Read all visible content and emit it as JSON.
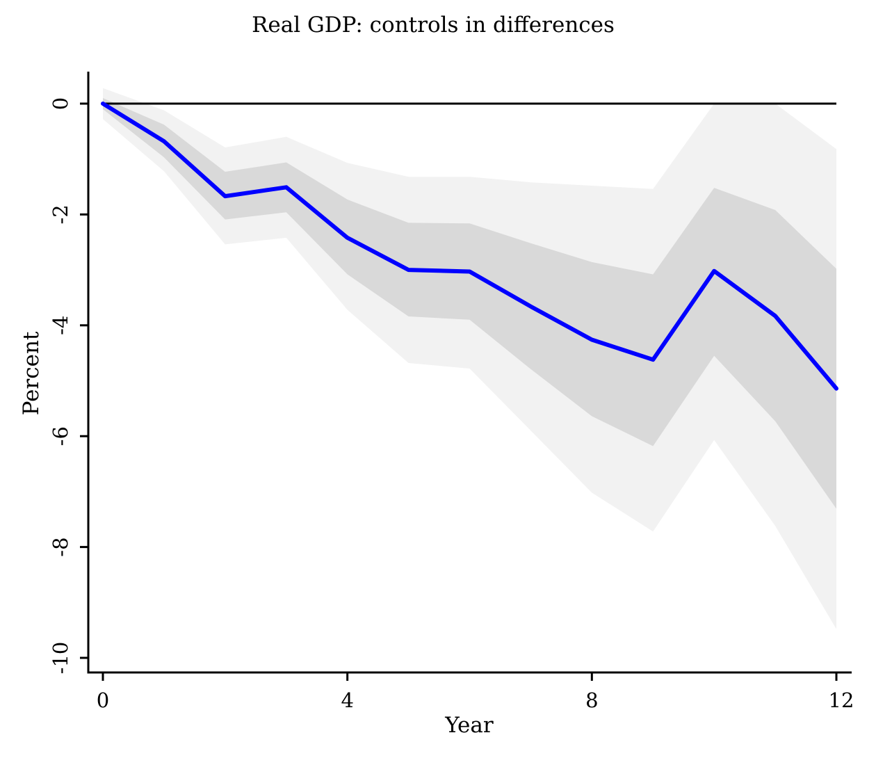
{
  "chart_data": {
    "type": "line",
    "title": "Real GDP: controls in differences",
    "xlabel": "Year",
    "ylabel": "Percent",
    "xlim": [
      0,
      12
    ],
    "ylim": [
      -10,
      0
    ],
    "x_ticks": [
      0,
      4,
      8,
      12
    ],
    "y_ticks": [
      0,
      -2,
      -4,
      -6,
      -8,
      -10
    ],
    "x": [
      0,
      1,
      2,
      3,
      4,
      5,
      6,
      7,
      8,
      9,
      10,
      11,
      12
    ],
    "series": [
      {
        "values": [
          0,
          -0.68,
          -1.67,
          -1.51,
          -2.42,
          -3.0,
          -3.03,
          -3.66,
          -4.26,
          -4.62,
          -3.02,
          -3.83,
          -5.14
        ]
      }
    ],
    "bands": [
      {
        "level": "outer",
        "upper": [
          0.28,
          -0.12,
          -0.79,
          -0.6,
          -1.07,
          -1.32,
          -1.32,
          -1.42,
          -1.48,
          -1.54,
          0.0,
          0.0,
          -0.82
        ],
        "lower": [
          -0.28,
          -1.22,
          -2.54,
          -2.42,
          -3.72,
          -4.68,
          -4.78,
          -5.9,
          -7.02,
          -7.72,
          -6.07,
          -7.62,
          -9.48
        ]
      },
      {
        "level": "inner",
        "upper": [
          0.1,
          -0.38,
          -1.23,
          -1.06,
          -1.73,
          -2.15,
          -2.16,
          -2.52,
          -2.86,
          -3.08,
          -1.52,
          -1.92,
          -2.98
        ],
        "lower": [
          -0.1,
          -0.97,
          -2.09,
          -1.96,
          -3.08,
          -3.84,
          -3.9,
          -4.79,
          -5.64,
          -6.18,
          -4.55,
          -5.73,
          -7.31
        ]
      }
    ],
    "zero_line": 0,
    "grid": false,
    "colors": {
      "line": "#0000ff",
      "inner_band": "#d9d9d9",
      "outer_band": "#f2f2f2",
      "zero_line": "#000000",
      "axis": "#000000"
    }
  }
}
